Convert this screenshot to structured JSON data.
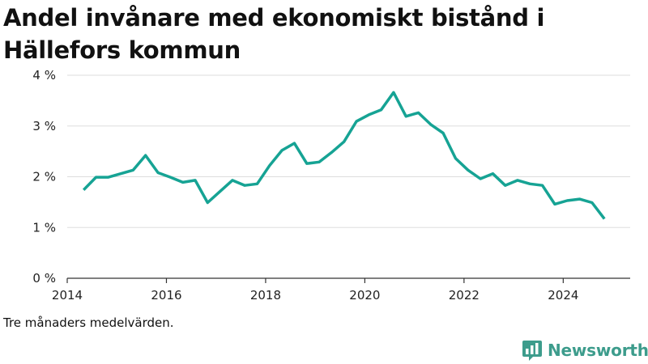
{
  "title": "Andel invånare med ekonomiskt bistånd i Hällefors kommun",
  "note": "Tre månaders medelvärden.",
  "brand": {
    "name": "Newsworthy",
    "icon": "newsworthy-logo-icon",
    "color": "#3d9c8c"
  },
  "colors": {
    "line": "#16a394",
    "grid": "#dddddd",
    "axis": "#333333"
  },
  "chart_data": {
    "type": "line",
    "title": "Andel invånare med ekonomiskt bistånd i Hällefors kommun",
    "xlabel": "",
    "ylabel": "",
    "xlim": [
      2014.0,
      2025.35
    ],
    "ylim": [
      0,
      4
    ],
    "x_ticks": [
      2014,
      2016,
      2018,
      2020,
      2022,
      2024
    ],
    "y_ticks": [
      0,
      1,
      2,
      3,
      4
    ],
    "y_tick_labels": [
      "0 %",
      "1 %",
      "2 %",
      "3 %",
      "4 %"
    ],
    "grid": true,
    "legend": "none",
    "series": [
      {
        "color": "#16a394",
        "x": [
          2014.33,
          2014.58,
          2014.83,
          2015.08,
          2015.33,
          2015.58,
          2015.83,
          2016.08,
          2016.33,
          2016.58,
          2016.83,
          2017.08,
          2017.33,
          2017.58,
          2017.83,
          2018.08,
          2018.33,
          2018.58,
          2018.83,
          2019.08,
          2019.33,
          2019.58,
          2019.83,
          2020.08,
          2020.33,
          2020.58,
          2020.83,
          2021.08,
          2021.33,
          2021.58,
          2021.83,
          2022.08,
          2022.33,
          2022.58,
          2022.83,
          2023.08,
          2023.33,
          2023.58,
          2023.83,
          2024.08,
          2024.33,
          2024.58,
          2024.83
        ],
        "y": [
          1.74,
          1.99,
          1.99,
          2.06,
          2.13,
          2.42,
          2.08,
          1.99,
          1.89,
          1.93,
          1.49,
          1.71,
          1.93,
          1.83,
          1.86,
          2.22,
          2.52,
          2.66,
          2.26,
          2.29,
          2.48,
          2.69,
          3.09,
          3.22,
          3.32,
          3.66,
          3.19,
          3.26,
          3.03,
          2.86,
          2.36,
          2.13,
          1.96,
          2.06,
          1.83,
          1.93,
          1.86,
          1.83,
          1.46,
          1.53,
          1.56,
          1.49,
          1.17
        ]
      }
    ]
  }
}
